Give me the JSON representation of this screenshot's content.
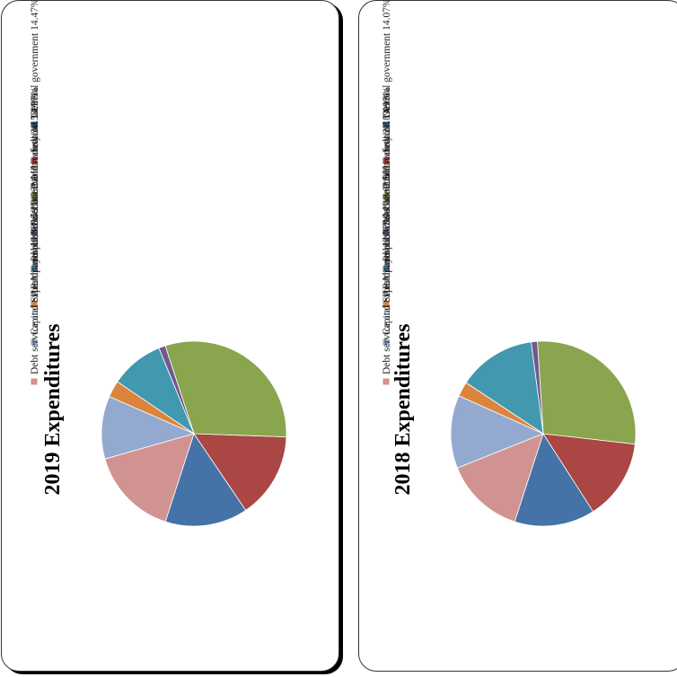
{
  "chart_data": [
    {
      "type": "pie",
      "title": "2019 Expenditures",
      "legend": "right",
      "slices": [
        {
          "label": "General government",
          "value": 14.47,
          "value_label": "14.47%",
          "color": "#4572a7"
        },
        {
          "label": "Judicial",
          "value": 14.97,
          "value_label": "14.97%",
          "color": "#aa4643"
        },
        {
          "label": "Public safety",
          "value": 30.58,
          "value_label": "30.58%",
          "color": "#89a54e"
        },
        {
          "label": "Education and recreation",
          "value": 1.17,
          "value_label": "1.17%",
          "color": "#71588f"
        },
        {
          "label": "Public works",
          "value": 9.33,
          "value_label": "9.33%",
          "color": "#4198af"
        },
        {
          "label": "Health and public welfare",
          "value": 2.91,
          "value_label": "2.91%",
          "color": "#db843d"
        },
        {
          "label": "Capital expenditures",
          "value": 10.98,
          "value_label": "10.98%",
          "color": "#93a9cf"
        },
        {
          "label": "Debt service and SARA payments",
          "value": 15.59,
          "value_label": "15.59%",
          "color": "#d09392"
        }
      ]
    },
    {
      "type": "pie",
      "title": "2018 Expenditures",
      "legend": "right",
      "slices": [
        {
          "label": "General government",
          "value": 14.07,
          "value_label": "14.07%",
          "color": "#4572a7"
        },
        {
          "label": "Judicial",
          "value": 14.13,
          "value_label": "14.13%",
          "color": "#aa4643"
        },
        {
          "label": "Public safety",
          "value": 27.8,
          "value_label": "27.8%",
          "color": "#89a54e"
        },
        {
          "label": "Education and recreation",
          "value": 1.09,
          "value_label": "1.09%",
          "color": "#71588f"
        },
        {
          "label": "Public works",
          "value": 13.62,
          "value_label": "13.62%",
          "color": "#4198af"
        },
        {
          "label": "Health and public welfare",
          "value": 2.58,
          "value_label": "2.58%",
          "color": "#db843d"
        },
        {
          "label": "Capital expenditures",
          "value": 12.77,
          "value_label": "12.77%",
          "color": "#93a9cf"
        },
        {
          "label": "Debt service and SARA payments",
          "value": 13.94,
          "value_label": "13.94%",
          "color": "#d09392"
        }
      ]
    }
  ]
}
